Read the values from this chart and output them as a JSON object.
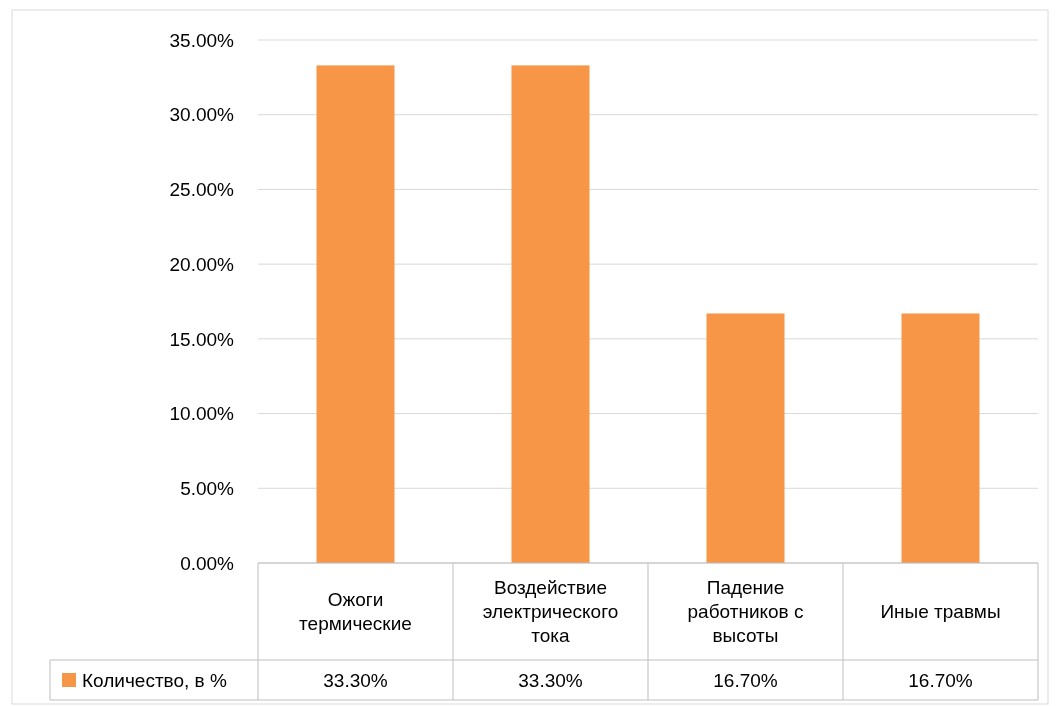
{
  "chart_data": {
    "type": "bar",
    "categories": [
      "Ожоги термические",
      "Воздействие электрического тока",
      "Падение работников с высоты",
      "Иные травмы"
    ],
    "series": [
      {
        "name": "Количество, в %",
        "color": "#f79646",
        "values": [
          33.3,
          33.3,
          16.7,
          16.7
        ],
        "value_labels": [
          "33.30%",
          "33.30%",
          "16.70%",
          "16.70%"
        ]
      }
    ],
    "ylim": [
      0,
      35
    ],
    "yticks": [
      {
        "value": 0,
        "label": "0.00%"
      },
      {
        "value": 5,
        "label": "5.00%"
      },
      {
        "value": 10,
        "label": "10.00%"
      },
      {
        "value": 15,
        "label": "15.00%"
      },
      {
        "value": 20,
        "label": "20.00%"
      },
      {
        "value": 25,
        "label": "25.00%"
      },
      {
        "value": 30,
        "label": "30.00%"
      },
      {
        "value": 35,
        "label": "35.00%"
      }
    ],
    "grid": "y",
    "legend": "bottom left"
  }
}
